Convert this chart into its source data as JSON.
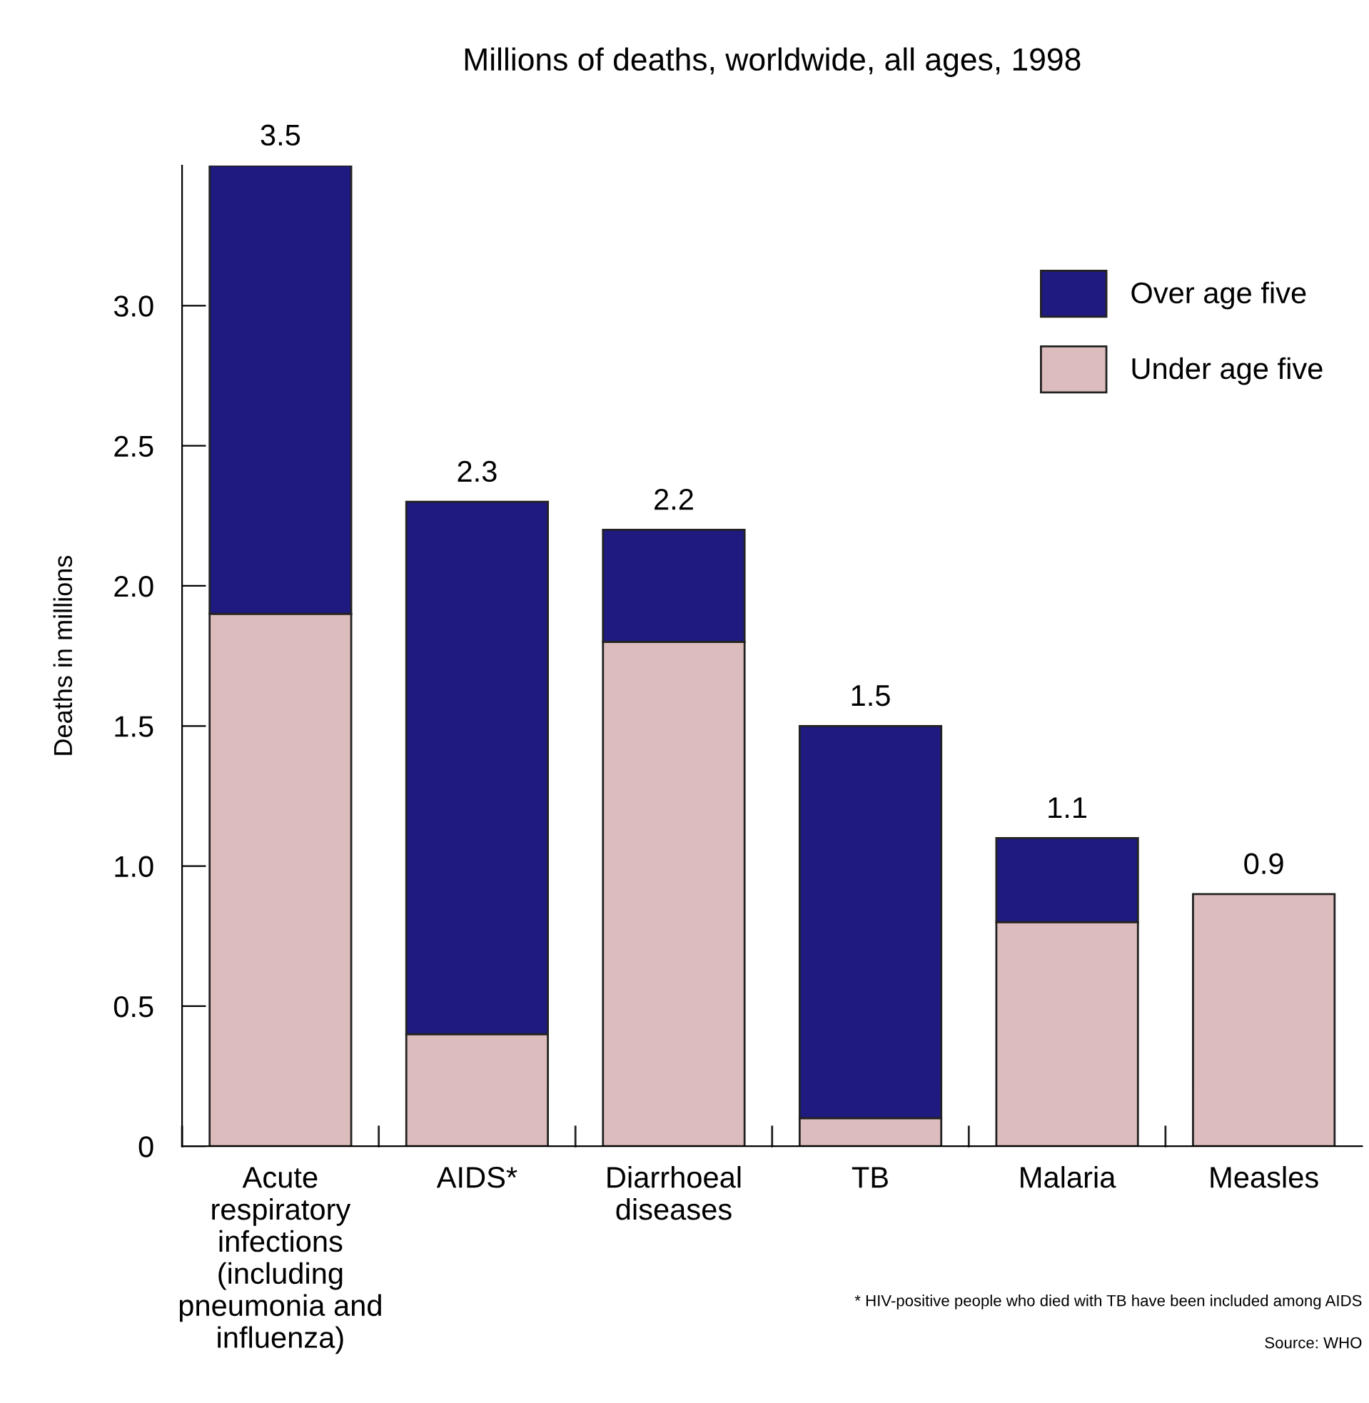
{
  "chart_data": {
    "type": "bar",
    "title": "Millions of deaths, worldwide, all ages, 1998",
    "ylabel": "Deaths in millions",
    "categories": [
      "Acute\nrespiratory\ninfections\n(including\npneumonia and\ninfluenza)",
      "AIDS*",
      "Diarrhoeal\ndiseases",
      "TB",
      "Malaria",
      "Measles"
    ],
    "stacked": true,
    "series": [
      {
        "name": "Under age five",
        "color": "#dcbcbc",
        "values": [
          1.9,
          0.4,
          1.8,
          0.1,
          0.8,
          0.9
        ]
      },
      {
        "name": "Over age five",
        "color": "#1f1a80",
        "values": [
          1.6,
          1.9,
          0.4,
          1.4,
          0.3,
          null
        ]
      }
    ],
    "totals": [
      "3.5",
      "2.3",
      "2.2",
      "1.5",
      "1.1",
      "0.9"
    ],
    "ylim": [
      0,
      3.5
    ],
    "yticks": [
      0,
      0.5,
      {
        "value": 1.0,
        "label": "1.0"
      },
      1.5,
      {
        "value": 2.0,
        "label": "2.0"
      },
      2.5,
      {
        "value": 3.0,
        "label": "3.0"
      }
    ],
    "legend": "top right",
    "grid": false,
    "annotations": [
      "* HIV-positive people who died with TB have been included among AIDS",
      "Source: WHO"
    ]
  }
}
